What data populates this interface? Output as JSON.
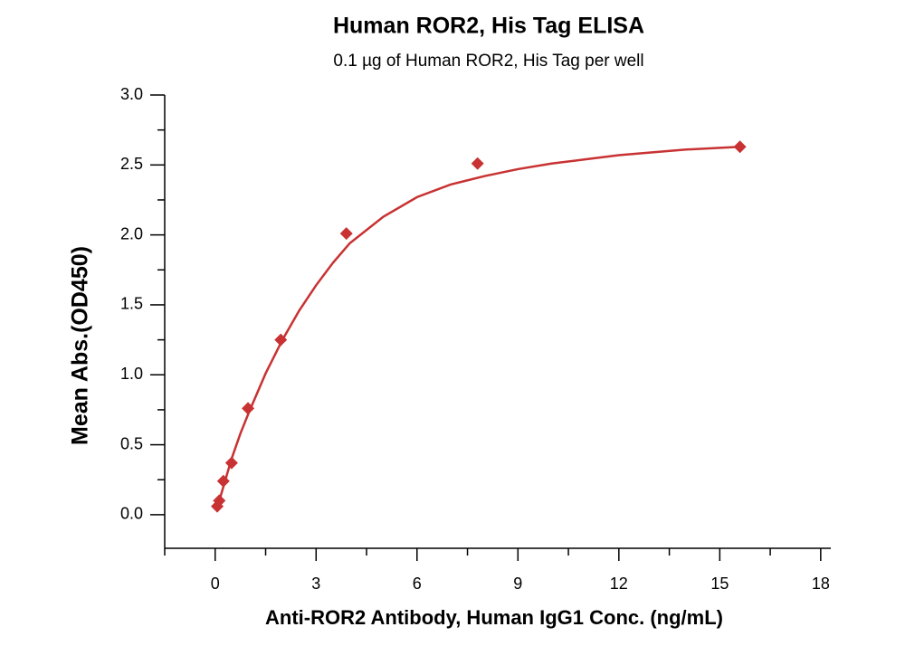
{
  "chart_data": {
    "type": "scatter",
    "title": "Human ROR2, His Tag ELISA",
    "subtitle": "0.1 µg of Human ROR2, His Tag per well",
    "x_label": "Anti-ROR2 Antibody, Human IgG1 Conc. (ng/mL)",
    "y_label": "Mean Abs.(OD450)",
    "x": [
      0.061,
      0.122,
      0.244,
      0.488,
      0.977,
      1.95,
      3.9,
      7.8,
      15.6
    ],
    "values": [
      0.06,
      0.1,
      0.24,
      0.37,
      0.76,
      1.25,
      2.01,
      2.51,
      2.63
    ],
    "color": "#c83232",
    "fit": {
      "x": [
        0.061,
        0.122,
        0.244,
        0.488,
        0.75,
        1,
        1.5,
        2,
        2.5,
        3,
        3.5,
        4,
        5,
        6,
        7,
        8,
        9,
        10,
        11,
        12,
        13,
        14,
        15.6
      ],
      "values": [
        0.05,
        0.1,
        0.2,
        0.4,
        0.58,
        0.73,
        1.01,
        1.25,
        1.46,
        1.64,
        1.8,
        1.94,
        2.13,
        2.27,
        2.36,
        2.42,
        2.47,
        2.51,
        2.54,
        2.57,
        2.59,
        2.61,
        2.63
      ]
    },
    "xlim": [
      -1.5,
      18.3
    ],
    "ylim": [
      -0.24,
      3.0
    ],
    "xticks": [
      0,
      3,
      6,
      9,
      12,
      15,
      18
    ],
    "xminorticks": [
      -1.5,
      1.5,
      4.5,
      7.5,
      10.5,
      13.5,
      16.5
    ],
    "yticks": [
      {
        "value": 0,
        "label": "0.0"
      },
      0.5,
      {
        "value": 1,
        "label": "1.0"
      },
      1.5,
      {
        "value": 2,
        "label": "2.0"
      },
      2.5,
      {
        "value": 3,
        "label": "3.0"
      }
    ],
    "yminorticks": [
      0.25,
      0.75,
      1.25,
      1.75,
      2.25,
      2.75
    ]
  }
}
